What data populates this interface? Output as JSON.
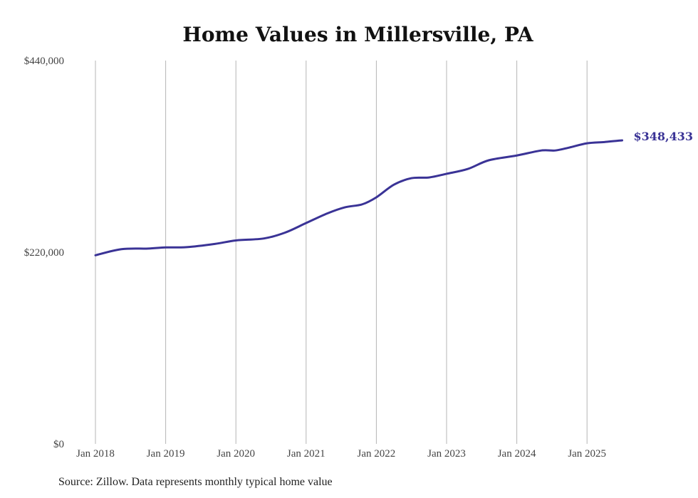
{
  "chart_data": {
    "type": "line",
    "title": "Home Values in Millersville, PA",
    "xlabel": "",
    "ylabel": "",
    "ylim": [
      0,
      440000
    ],
    "y_ticks": [
      0,
      220000,
      440000
    ],
    "y_tick_labels": [
      "$0",
      "$220,000",
      "$440,000"
    ],
    "x_ticks": [
      2018,
      2019,
      2020,
      2021,
      2022,
      2023,
      2024,
      2025
    ],
    "x_tick_labels": [
      "Jan 2018",
      "Jan 2019",
      "Jan 2020",
      "Jan 2021",
      "Jan 2022",
      "Jan 2023",
      "Jan 2024",
      "Jan 2025"
    ],
    "xlim": [
      2018,
      2025.5
    ],
    "grid": "vertical",
    "series": [
      {
        "name": "Typical home value",
        "color": "#3a3396",
        "x": [
          2018.0,
          2018.37,
          2018.75,
          2019.0,
          2019.3,
          2019.7,
          2020.0,
          2020.4,
          2020.7,
          2021.0,
          2021.3,
          2021.55,
          2021.8,
          2022.0,
          2022.25,
          2022.5,
          2022.75,
          2023.0,
          2023.3,
          2023.6,
          2024.0,
          2024.35,
          2024.55,
          2024.75,
          2025.0,
          2025.25,
          2025.5
        ],
        "y": [
          216500,
          223500,
          224200,
          225500,
          225800,
          229500,
          233500,
          235800,
          242500,
          253500,
          264500,
          271500,
          275000,
          283000,
          297500,
          305000,
          305800,
          310000,
          315500,
          325500,
          331000,
          336800,
          336800,
          340200,
          345000,
          346500,
          348433
        ]
      }
    ],
    "end_label": "$348,433",
    "source": "Source: Zillow. Data represents monthly typical home value"
  }
}
